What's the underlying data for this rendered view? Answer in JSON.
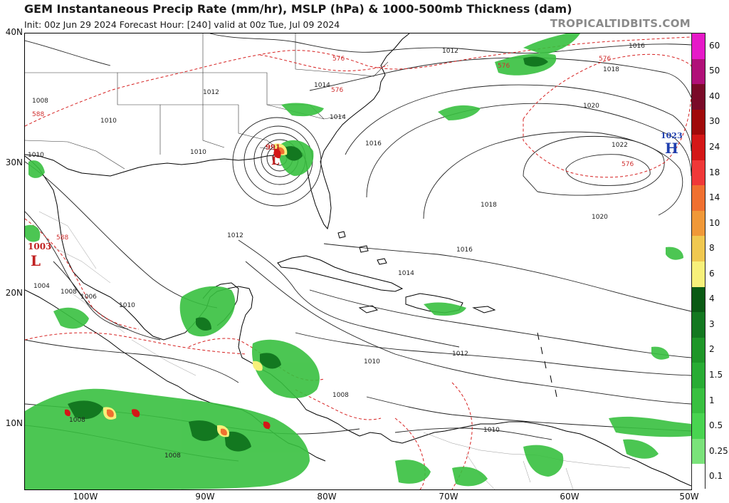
{
  "header": {
    "title": "GEM Instantaneous Precip Rate (mm/hr), MSLP (hPa) & 1000-500mb Thickness (dam)",
    "subtitle": "Init: 00z Jun 29 2024   Forecast Hour: [240]   valid at 00z Tue, Jul 09 2024",
    "brand": "TROPICALTIDBITS.COM"
  },
  "axes": {
    "lat_labels": [
      "40N",
      "30N",
      "20N",
      "10N"
    ],
    "lon_labels": [
      "100W",
      "90W",
      "80W",
      "70W",
      "60W",
      "50W"
    ]
  },
  "colorbar": {
    "labels": [
      "60",
      "50",
      "40",
      "30",
      "24",
      "18",
      "14",
      "10",
      "8",
      "6",
      "4",
      "3",
      "2",
      "1.5",
      "1",
      "0.5",
      "0.25",
      "0.1"
    ],
    "colors": [
      "#e619c8",
      "#b01078",
      "#7a0a28",
      "#a00a0a",
      "#d41717",
      "#f03838",
      "#f07030",
      "#f09838",
      "#f0c850",
      "#f7f07a",
      "#0a5a14",
      "#137820",
      "#1e9628",
      "#28ac34",
      "#38c040",
      "#48d450",
      "#7ae27a",
      "#ffffff"
    ]
  },
  "pressure_centers": {
    "high": {
      "value": "1023",
      "letter": "H"
    },
    "low_mexico": {
      "value": "1003",
      "letter": "L"
    },
    "low_gulf": {
      "value": "991",
      "letter": "L"
    }
  },
  "isobar_labels": [
    "1012",
    "1014",
    "1016",
    "1018",
    "1020",
    "1022",
    "1014",
    "1012",
    "1010",
    "1008",
    "1010",
    "1008",
    "1006",
    "1004",
    "1010",
    "1016",
    "1018",
    "1020",
    "1016",
    "1014",
    "1012",
    "1010",
    "1008",
    "1008",
    "1010",
    "1012",
    "1010",
    "1008"
  ],
  "thickness_labels": [
    "576",
    "576",
    "576",
    "576",
    "588",
    "588",
    "576"
  ]
}
